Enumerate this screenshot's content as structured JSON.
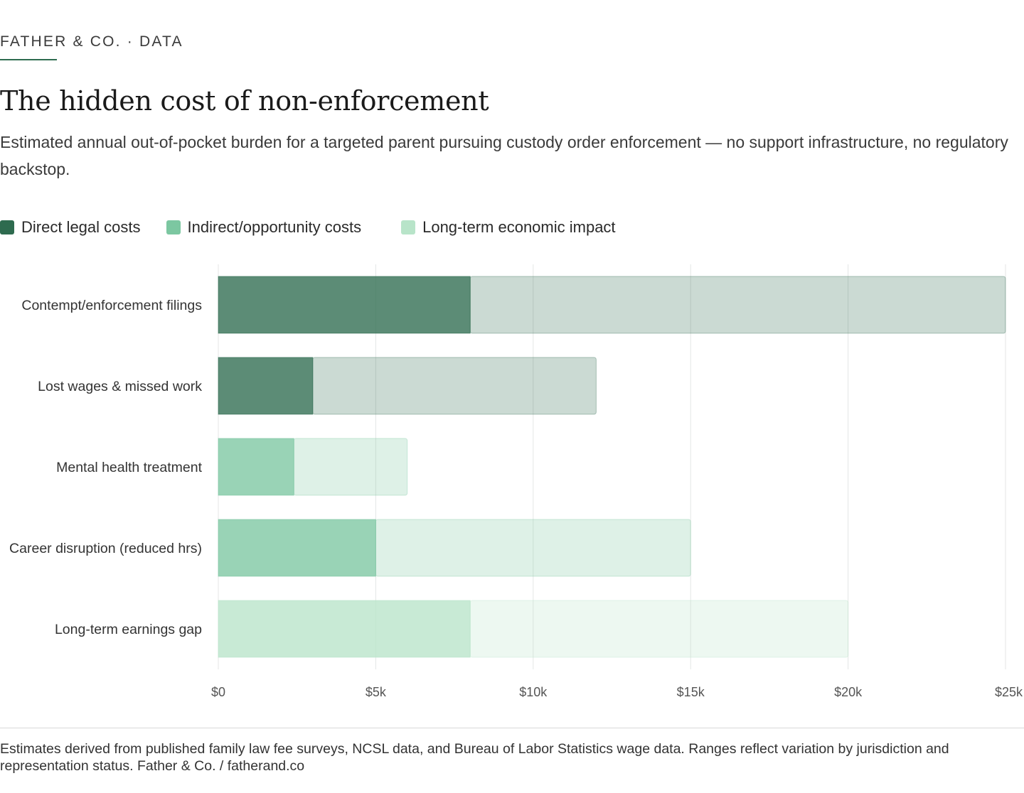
{
  "header": {
    "kicker": "FATHER & CO. · DATA",
    "title": "The hidden cost of non-enforcement",
    "subtitle": "Estimated annual out-of-pocket burden for a targeted parent pursuing custody order enforcement — no support infrastructure, no regulatory backstop."
  },
  "legend": [
    {
      "label": "Direct legal costs",
      "color": "#2e6b4f"
    },
    {
      "label": "Indirect/opportunity costs",
      "color": "#7cc7a1"
    },
    {
      "label": "Long-term economic impact",
      "color": "#b8e4c9"
    }
  ],
  "chart_data": {
    "type": "bar",
    "orientation": "horizontal",
    "stacked": "range",
    "categories": [
      "Contempt/enforcement filings",
      "Lost wages & missed work",
      "Mental health treatment",
      "Career disruption (reduced hrs)",
      "Long-term earnings gap"
    ],
    "series": [
      {
        "name": "Direct legal costs",
        "color": "#2e6b4f",
        "low": [
          8000,
          3000,
          null,
          null,
          null
        ],
        "high": [
          25000,
          12000,
          null,
          null,
          null
        ]
      },
      {
        "name": "Indirect/opportunity costs",
        "color": "#7cc7a1",
        "low": [
          null,
          null,
          2400,
          5000,
          null
        ],
        "high": [
          null,
          null,
          6000,
          15000,
          null
        ]
      },
      {
        "name": "Long-term economic impact",
        "color": "#b8e4c9",
        "low": [
          null,
          null,
          null,
          null,
          8000
        ],
        "high": [
          null,
          null,
          null,
          null,
          20000
        ]
      }
    ],
    "xlim": [
      0,
      25000
    ],
    "xticks": [
      0,
      5000,
      10000,
      15000,
      20000,
      25000
    ],
    "xtick_labels": [
      "$0",
      "$5k",
      "$10k",
      "$15k",
      "$20k",
      "$25k"
    ],
    "grid": true,
    "legend_position": "top-left"
  },
  "footer": {
    "note": "Estimates derived from published family law fee surveys, NCSL data, and Bureau of Labor Statistics wage data. Ranges reflect variation by jurisdiction and representation status. Father & Co. / fatherand.co"
  }
}
